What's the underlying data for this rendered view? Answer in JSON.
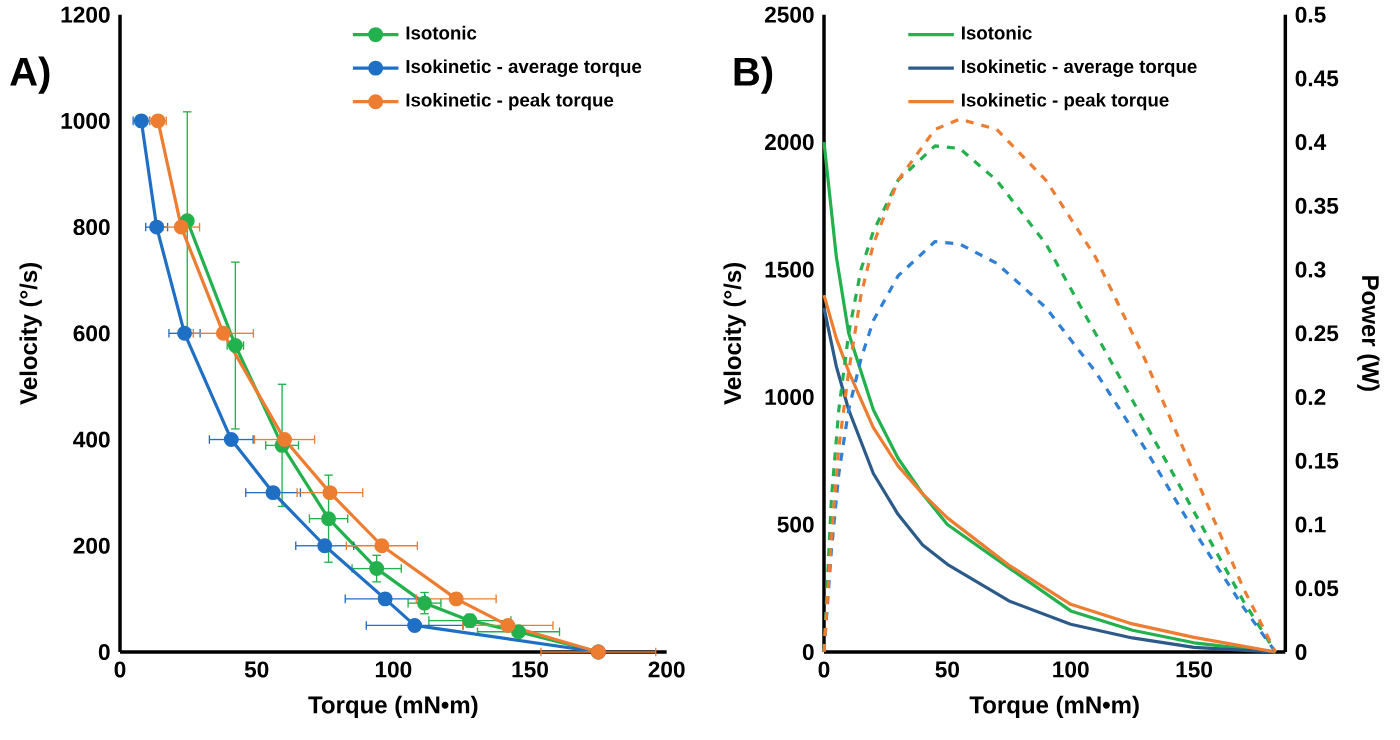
{
  "chart_data": [
    {
      "type": "line",
      "title": "A)",
      "xlabel": "Torque (mN•m)",
      "ylabel": "Velocity (°/s)",
      "xlim": [
        0,
        200
      ],
      "xticks": [
        0,
        50,
        100,
        150,
        200
      ],
      "ylim": [
        0,
        1200
      ],
      "yticks": [
        0,
        200,
        400,
        600,
        800,
        1000,
        1200
      ],
      "marker": "circle",
      "legend": "top right",
      "series": [
        {
          "name": "Isotonic",
          "color": "#22b14c",
          "x": [
            24.6,
            42.2,
            59.3,
            76.3,
            93.9,
            111.4,
            128,
            145.8,
            175
          ],
          "values": [
            812,
            577,
            389,
            251,
            157,
            92,
            59,
            38,
            0
          ],
          "xerrors": [
            null,
            3,
            6,
            7,
            9,
            6,
            15,
            15,
            null
          ],
          "errors": [
            205,
            157,
            115,
            82,
            25,
            20,
            12,
            8,
            null
          ]
        },
        {
          "name": "Isokinetic - average torque",
          "color": "#1f6fc5",
          "x": [
            7.8,
            13.4,
            23.6,
            40.7,
            56,
            74.9,
            97,
            107.8,
            175
          ],
          "values": [
            1000,
            800,
            600,
            400,
            300,
            200,
            100,
            50,
            0
          ],
          "xerrors": [
            3,
            4,
            5.7,
            8,
            10,
            10.6,
            14.6,
            17.7,
            null
          ]
        },
        {
          "name": "Isokinetic - peak torque",
          "color": "#ed7d31",
          "x": [
            13.9,
            22.4,
            37.8,
            60.2,
            76.8,
            95.8,
            123,
            141.9,
            175
          ],
          "values": [
            1000,
            800,
            600,
            400,
            300,
            200,
            100,
            50,
            0
          ],
          "xerrors": [
            3,
            6.7,
            11,
            11,
            12,
            13,
            14.6,
            16.5,
            21
          ]
        }
      ]
    },
    {
      "type": "line",
      "title": "B)",
      "xlabel": "Torque (mN•m)",
      "ylabel": "Velocity (°/s)",
      "y2label": "Power (W)",
      "xlim": [
        0,
        187
      ],
      "xticks": [
        0,
        50,
        100,
        150
      ],
      "ylim": [
        0,
        2500
      ],
      "yticks": [
        0,
        500,
        1000,
        1500,
        2000,
        2500
      ],
      "y2lim": [
        0,
        0.5
      ],
      "y2ticks": [
        0,
        0.05,
        0.1,
        0.15,
        0.2,
        0.25,
        0.3,
        0.35,
        0.4,
        0.45,
        0.5
      ],
      "legend": "top",
      "series": [
        {
          "name": "Isotonic",
          "color": "#22b14c",
          "x": [
            0,
            5,
            10,
            20,
            30,
            40,
            50,
            75,
            100,
            125,
            150,
            183
          ],
          "values": [
            2000,
            1550,
            1250,
            950,
            760,
            620,
            500,
            330,
            161,
            85,
            36,
            0
          ]
        },
        {
          "name": "Isokinetic - average torque",
          "color": "#2c5b8a",
          "x": [
            0,
            5,
            10,
            20,
            30,
            40,
            50,
            75,
            100,
            125,
            150,
            183
          ],
          "values": [
            1350,
            1120,
            950,
            700,
            540,
            420,
            344,
            200,
            109,
            55,
            18,
            0
          ]
        },
        {
          "name": "Isokinetic - peak torque",
          "color": "#ed7d31",
          "x": [
            0,
            5,
            10,
            20,
            30,
            40,
            50,
            75,
            100,
            125,
            150,
            183
          ],
          "values": [
            1400,
            1230,
            1100,
            880,
            730,
            620,
            526,
            340,
            187,
            110,
            57,
            0
          ]
        },
        {
          "color": "#22b14c",
          "axis": "y2",
          "line_style": "dashed",
          "x": [
            0,
            3,
            6,
            10,
            15,
            20,
            30,
            45,
            55,
            70,
            90,
            110,
            130,
            150,
            170,
            183
          ],
          "values": [
            0,
            0.12,
            0.19,
            0.25,
            0.3,
            0.33,
            0.37,
            0.397,
            0.395,
            0.37,
            0.32,
            0.25,
            0.18,
            0.11,
            0.04,
            0
          ]
        },
        {
          "color": "#2e7fd5",
          "axis": "y2",
          "line_style": "dashed",
          "x": [
            0,
            3,
            6,
            10,
            15,
            20,
            30,
            45,
            55,
            70,
            90,
            110,
            130,
            150,
            170,
            183
          ],
          "values": [
            0,
            0.08,
            0.14,
            0.19,
            0.23,
            0.26,
            0.295,
            0.322,
            0.32,
            0.305,
            0.27,
            0.22,
            0.16,
            0.095,
            0.035,
            0
          ]
        },
        {
          "color": "#ed7d31",
          "axis": "y2",
          "line_style": "dashed",
          "x": [
            0,
            3,
            6,
            10,
            15,
            20,
            30,
            45,
            55,
            70,
            90,
            110,
            130,
            150,
            170,
            183
          ],
          "values": [
            0,
            0.09,
            0.16,
            0.22,
            0.28,
            0.32,
            0.37,
            0.41,
            0.418,
            0.41,
            0.37,
            0.31,
            0.23,
            0.14,
            0.05,
            0
          ]
        }
      ]
    }
  ]
}
